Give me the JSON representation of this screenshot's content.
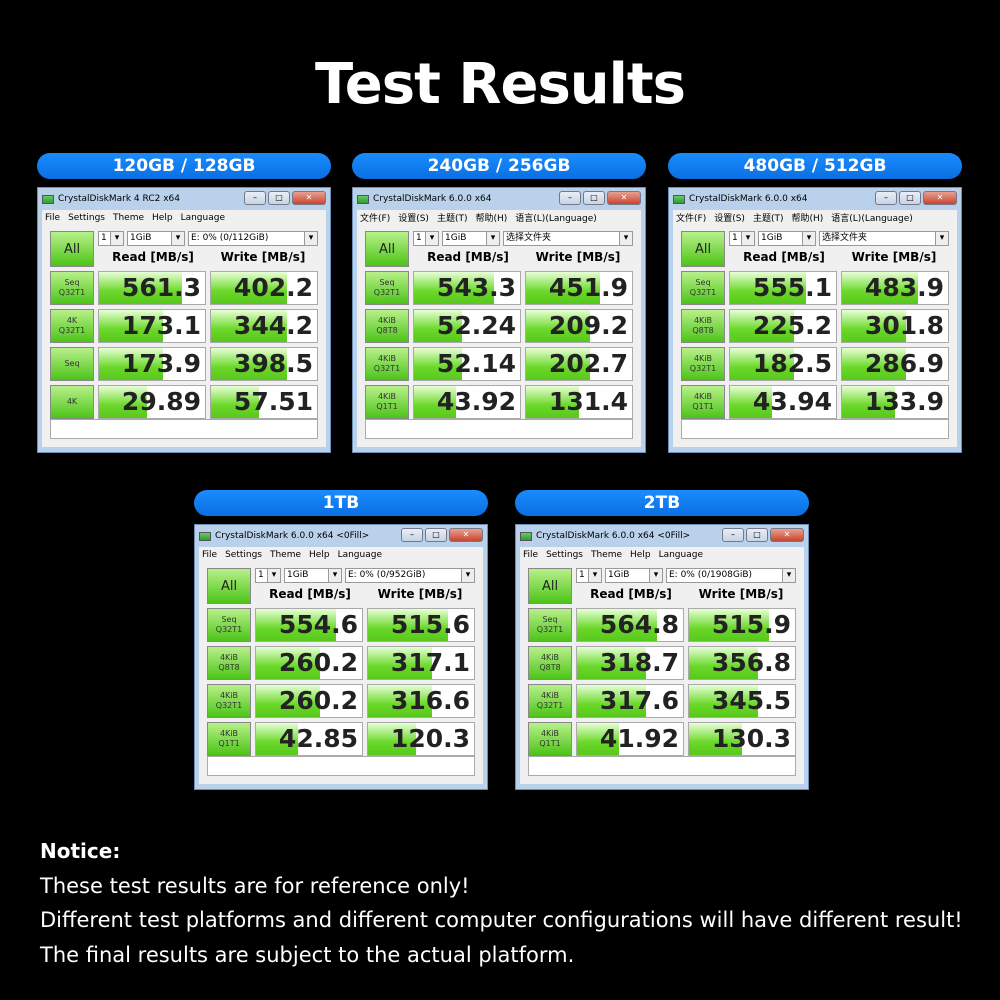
{
  "title": "Test Results",
  "read_header": "Read [MB/s]",
  "write_header": "Write [MB/s]",
  "all_label": "All",
  "colors": {
    "pill": "#1a8cff",
    "bar": "#58c81c",
    "background": "#000000"
  },
  "panels": [
    {
      "capacity": "120GB / 128GB",
      "window_title": "CrystalDiskMark 4 RC2 x64",
      "menu": [
        "File",
        "Settings",
        "Theme",
        "Help",
        "Language"
      ],
      "count": "1",
      "size": "1GiB",
      "drive": "E: 0% (0/112GiB)",
      "rows": [
        {
          "label": "Seq\nQ32T1",
          "read": "561.3",
          "write": "402.2",
          "read_fill": 0.78,
          "write_fill": 0.72
        },
        {
          "label": "4K\nQ32T1",
          "read": "173.1",
          "write": "344.2",
          "read_fill": 0.6,
          "write_fill": 0.72
        },
        {
          "label": "Seq",
          "read": "173.9",
          "write": "398.5",
          "read_fill": 0.6,
          "write_fill": 0.72
        },
        {
          "label": "4K",
          "read": "29.89",
          "write": "57.51",
          "read_fill": 0.45,
          "write_fill": 0.45
        }
      ]
    },
    {
      "capacity": "240GB / 256GB",
      "window_title": "CrystalDiskMark 6.0.0 x64",
      "menu": [
        "文件(F)",
        "设置(S)",
        "主题(T)",
        "帮助(H)",
        "语言(L)(Language)"
      ],
      "count": "1",
      "size": "1GiB",
      "drive": "选择文件夹",
      "rows": [
        {
          "label": "Seq\nQ32T1",
          "read": "543.3",
          "write": "451.9",
          "read_fill": 0.75,
          "write_fill": 0.7
        },
        {
          "label": "4KiB\nQ8T8",
          "read": "52.24",
          "write": "209.2",
          "read_fill": 0.45,
          "write_fill": 0.6
        },
        {
          "label": "4KiB\nQ32T1",
          "read": "52.14",
          "write": "202.7",
          "read_fill": 0.45,
          "write_fill": 0.6
        },
        {
          "label": "4KiB\nQ1T1",
          "read": "43.92",
          "write": "131.4",
          "read_fill": 0.4,
          "write_fill": 0.5
        }
      ]
    },
    {
      "capacity": "480GB / 512GB",
      "window_title": "CrystalDiskMark 6.0.0 x64",
      "menu": [
        "文件(F)",
        "设置(S)",
        "主题(T)",
        "帮助(H)",
        "语言(L)(Language)"
      ],
      "count": "1",
      "size": "1GiB",
      "drive": "选择文件夹",
      "rows": [
        {
          "label": "Seq\nQ32T1",
          "read": "555.1",
          "write": "483.9",
          "read_fill": 0.72,
          "write_fill": 0.72
        },
        {
          "label": "4KiB\nQ8T8",
          "read": "225.2",
          "write": "301.8",
          "read_fill": 0.6,
          "write_fill": 0.6
        },
        {
          "label": "4KiB\nQ32T1",
          "read": "182.5",
          "write": "286.9",
          "read_fill": 0.6,
          "write_fill": 0.6
        },
        {
          "label": "4KiB\nQ1T1",
          "read": "43.94",
          "write": "133.9",
          "read_fill": 0.4,
          "write_fill": 0.5
        }
      ]
    },
    {
      "capacity": "1TB",
      "window_title": "CrystalDiskMark 6.0.0 x64 <0Fill>",
      "menu": [
        "File",
        "Settings",
        "Theme",
        "Help",
        "Language"
      ],
      "count": "1",
      "size": "1GiB",
      "drive": "E: 0% (0/952GiB)",
      "rows": [
        {
          "label": "Seq\nQ32T1",
          "read": "554.6",
          "write": "515.6",
          "read_fill": 0.75,
          "write_fill": 0.75
        },
        {
          "label": "4KiB\nQ8T8",
          "read": "260.2",
          "write": "317.1",
          "read_fill": 0.6,
          "write_fill": 0.6
        },
        {
          "label": "4KiB\nQ32T1",
          "read": "260.2",
          "write": "316.6",
          "read_fill": 0.6,
          "write_fill": 0.6
        },
        {
          "label": "4KiB\nQ1T1",
          "read": "42.85",
          "write": "120.3",
          "read_fill": 0.4,
          "write_fill": 0.45
        }
      ]
    },
    {
      "capacity": "2TB",
      "window_title": "CrystalDiskMark 6.0.0 x64 <0Fill>",
      "menu": [
        "File",
        "Settings",
        "Theme",
        "Help",
        "Language"
      ],
      "count": "1",
      "size": "1GiB",
      "drive": "E: 0% (0/1908GiB)",
      "rows": [
        {
          "label": "Seq\nQ32T1",
          "read": "564.8",
          "write": "515.9",
          "read_fill": 0.75,
          "write_fill": 0.75
        },
        {
          "label": "4KiB\nQ8T8",
          "read": "318.7",
          "write": "356.8",
          "read_fill": 0.65,
          "write_fill": 0.65
        },
        {
          "label": "4KiB\nQ32T1",
          "read": "317.6",
          "write": "345.5",
          "read_fill": 0.65,
          "write_fill": 0.65
        },
        {
          "label": "4KiB\nQ1T1",
          "read": "41.92",
          "write": "130.3",
          "read_fill": 0.4,
          "write_fill": 0.5
        }
      ]
    }
  ],
  "notice": {
    "heading": "Notice:",
    "lines": [
      "These test results are for reference only!",
      "Different test platforms and different computer configurations will have different result!",
      "The final results are subject to the actual platform."
    ]
  }
}
